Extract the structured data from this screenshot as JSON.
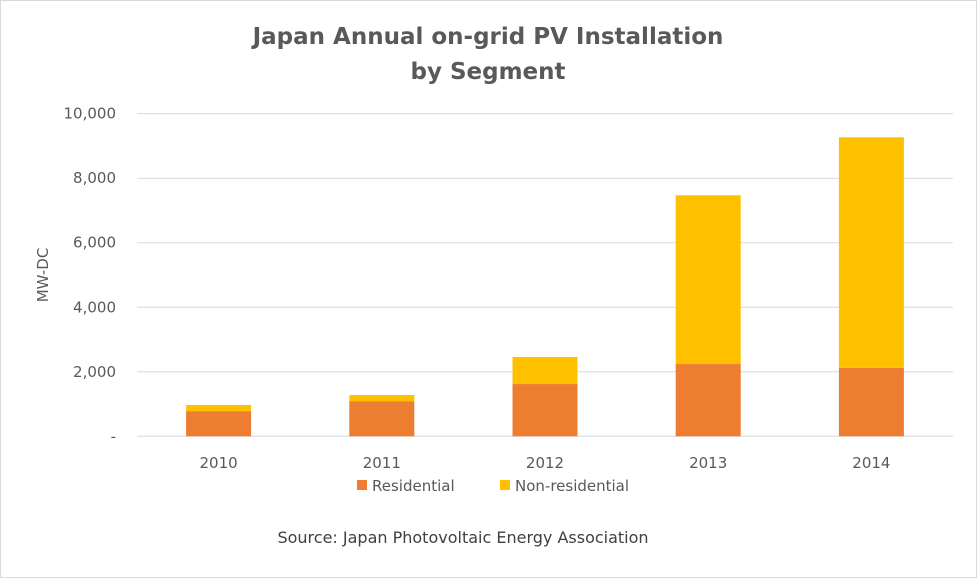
{
  "chart_data": {
    "type": "bar",
    "stacked": true,
    "title": [
      "Japan Annual on-grid PV Installation",
      "by Segment"
    ],
    "ylabel": "MW-DC",
    "xlabel": "",
    "ylim": [
      0,
      10000
    ],
    "yticks": [
      0,
      2000,
      4000,
      6000,
      8000,
      10000
    ],
    "ytick_labels": [
      "-",
      "2,000",
      "4,000",
      "6,000",
      "8,000",
      "10,000"
    ],
    "grid": true,
    "legend_position": "bottom",
    "categories": [
      "2010",
      "2011",
      "2012",
      "2013",
      "2014"
    ],
    "series": [
      {
        "name": "Residential",
        "color": "#ed7d31",
        "values": [
          780,
          1090,
          1620,
          2240,
          2120
        ]
      },
      {
        "name": "Non-residential",
        "color": "#ffc000",
        "values": [
          190,
          190,
          840,
          5230,
          7150
        ]
      }
    ],
    "annotation": "Source: Japan Photovoltaic Energy Association"
  }
}
